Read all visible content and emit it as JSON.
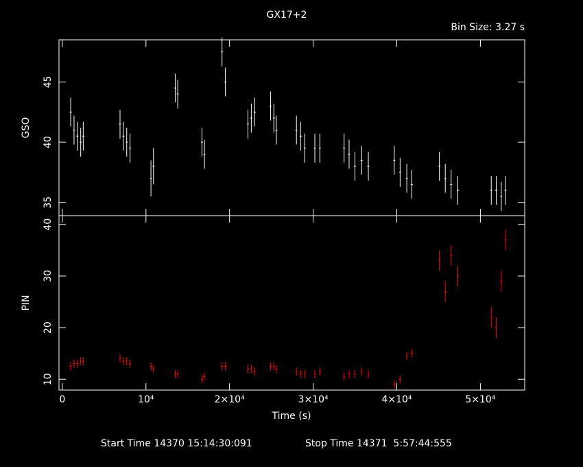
{
  "chart_data": [
    {
      "type": "errorbar",
      "title": "GX17+2",
      "subtitle": "Bin Size: 3.27 s",
      "ylabel": "GSO",
      "color": "#ffffff",
      "x": [
        1000,
        1400,
        1800,
        2200,
        2500,
        6900,
        7300,
        7700,
        8100,
        10600,
        10900,
        13500,
        13800,
        16700,
        17000,
        19100,
        19500,
        22200,
        22600,
        23000,
        24900,
        25300,
        25600,
        28000,
        28500,
        29000,
        30200,
        30800,
        33700,
        34300,
        35000,
        35800,
        36600,
        39700,
        40400,
        41200,
        41800,
        45100,
        45800,
        46500,
        47300,
        51300,
        51900,
        52500,
        53000
      ],
      "values": [
        42.5,
        41,
        40.5,
        40,
        40.5,
        41.5,
        40.5,
        40,
        39.5,
        37,
        38,
        44.5,
        44,
        40,
        39,
        47.5,
        45,
        41.5,
        42,
        42.5,
        43,
        42,
        41,
        41,
        40.5,
        39.5,
        39.5,
        39.5,
        39.5,
        39,
        38,
        38.5,
        38,
        38.5,
        37.5,
        37,
        36.5,
        38,
        37,
        36.5,
        36,
        36,
        36,
        35.5,
        36
      ],
      "errors": [
        1.2,
        1.2,
        1.2,
        1.2,
        1.2,
        1.2,
        1.2,
        1.2,
        1.2,
        1.5,
        1.5,
        1.2,
        1.2,
        1.2,
        1.2,
        1.2,
        1.2,
        1.2,
        1.2,
        1.2,
        1.2,
        1.2,
        1.2,
        1.2,
        1.2,
        1.2,
        1.2,
        1.2,
        1.2,
        1.2,
        1.2,
        1.2,
        1.2,
        1.2,
        1.2,
        1.2,
        1.2,
        1.2,
        1.2,
        1.2,
        1.2,
        1.2,
        1.2,
        1.2,
        1.2
      ],
      "ylim": [
        33.9,
        48.5
      ],
      "yticks": [
        35,
        40,
        45
      ]
    },
    {
      "type": "errorbar",
      "ylabel": "PIN",
      "xlabel": "Time (s)",
      "color": "#ff0000",
      "x": [
        1000,
        1400,
        1800,
        2200,
        2500,
        6900,
        7300,
        7700,
        8100,
        10600,
        10900,
        13500,
        13800,
        16700,
        17000,
        19100,
        19500,
        22200,
        22600,
        23000,
        24900,
        25300,
        25600,
        28000,
        28500,
        29000,
        30200,
        30800,
        33700,
        34300,
        35000,
        35800,
        36600,
        39700,
        40400,
        41200,
        41800,
        45100,
        45800,
        46500,
        47300,
        51300,
        51900,
        52500,
        53000
      ],
      "values": [
        12.5,
        13,
        13,
        13.5,
        13.5,
        14,
        13.5,
        13.5,
        13,
        12.5,
        12,
        11,
        11,
        10,
        10.5,
        12.5,
        12.5,
        12,
        12,
        11.5,
        12.5,
        12.5,
        12,
        11.5,
        11,
        11,
        11,
        11.5,
        10.5,
        11,
        11,
        11.5,
        11,
        9,
        10,
        14.5,
        15,
        33,
        27,
        34,
        30,
        22,
        20,
        29,
        37
      ],
      "errors": [
        0.8,
        0.8,
        0.8,
        0.8,
        0.8,
        0.8,
        0.8,
        0.8,
        0.8,
        0.8,
        0.8,
        0.8,
        0.8,
        0.8,
        0.8,
        0.8,
        0.8,
        0.8,
        0.8,
        0.8,
        0.8,
        0.8,
        0.8,
        0.8,
        0.8,
        0.8,
        0.8,
        0.8,
        0.8,
        0.8,
        0.8,
        0.8,
        0.8,
        0.8,
        0.8,
        0.8,
        0.8,
        2,
        2,
        2,
        2,
        2,
        2,
        2,
        2
      ],
      "xlim": [
        -400,
        55300
      ],
      "ylim": [
        7.9,
        41.7
      ],
      "xticks": [
        0,
        {
          "value": 10000,
          "label": "10⁴"
        },
        {
          "value": 20000,
          "label": "2×10⁴"
        },
        {
          "value": 30000,
          "label": "3×10⁴"
        },
        {
          "value": 40000,
          "label": "4×10⁴"
        },
        {
          "value": 50000,
          "label": "5×10⁴"
        }
      ],
      "yticks": [
        10,
        20,
        30,
        40
      ],
      "annotations": [
        "Start Time 14370 15:14:30:091",
        "Stop Time 14371  5:57:44:555"
      ]
    }
  ]
}
